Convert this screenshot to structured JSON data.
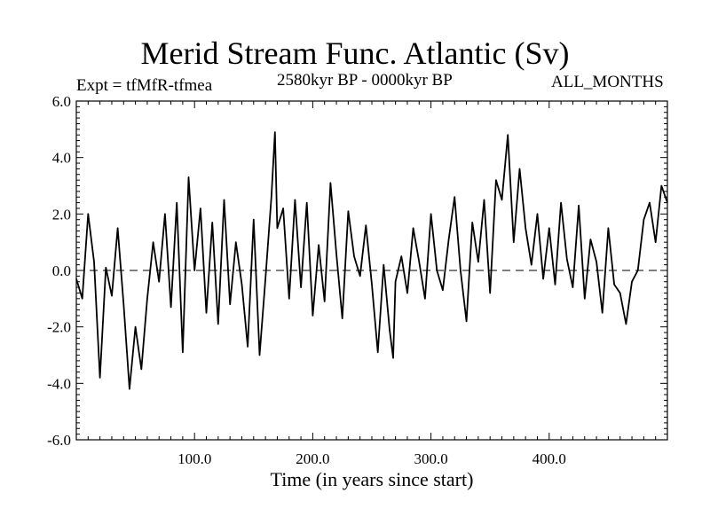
{
  "chart_data": {
    "type": "line",
    "title": "Merid Stream Func. Atlantic (Sv)",
    "subtitle_left": "Expt = tfMfR-tfmea",
    "subtitle_center": "2580kyr BP - 0000kyr BP",
    "subtitle_right": "ALL_MONTHS",
    "xlabel": "Time (in years since start)",
    "ylabel": "",
    "xlim": [
      0,
      500
    ],
    "ylim": [
      -6.0,
      6.0
    ],
    "xticks": [
      100.0,
      200.0,
      300.0,
      400.0
    ],
    "xtick_labels": [
      "100.0",
      "200.0",
      "300.0",
      "400.0"
    ],
    "yticks": [
      -6.0,
      -4.0,
      -2.0,
      0.0,
      2.0,
      4.0,
      6.0
    ],
    "ytick_labels": [
      "-6.0",
      "-4.0",
      "-2.0",
      "0.0",
      "2.0",
      "4.0",
      "6.0"
    ],
    "reference_line": 0.0,
    "series": [
      {
        "name": "Merid Stream Func. Atlantic",
        "x": [
          0,
          5,
          10,
          15,
          20,
          25,
          30,
          35,
          40,
          45,
          50,
          55,
          60,
          65,
          70,
          75,
          80,
          85,
          90,
          95,
          100,
          105,
          110,
          115,
          120,
          125,
          130,
          135,
          140,
          145,
          150,
          155,
          160,
          165,
          168,
          170,
          175,
          180,
          185,
          190,
          195,
          200,
          205,
          210,
          215,
          220,
          225,
          230,
          235,
          240,
          245,
          250,
          255,
          260,
          265,
          268,
          270,
          275,
          280,
          285,
          290,
          295,
          300,
          305,
          310,
          315,
          320,
          325,
          330,
          335,
          340,
          345,
          350,
          355,
          360,
          365,
          370,
          375,
          380,
          385,
          390,
          395,
          400,
          405,
          410,
          415,
          420,
          425,
          430,
          435,
          440,
          445,
          450,
          455,
          460,
          465,
          470,
          475,
          480,
          485,
          490,
          495,
          500
        ],
        "values": [
          -0.3,
          -1.0,
          2.0,
          0.3,
          -3.8,
          0.1,
          -0.9,
          1.5,
          -1.2,
          -4.2,
          -2.0,
          -3.5,
          -1.0,
          1.0,
          -0.4,
          2.0,
          -1.3,
          2.4,
          -2.9,
          3.3,
          0.0,
          2.2,
          -1.5,
          1.7,
          -1.9,
          2.5,
          -1.2,
          1.0,
          -0.5,
          -2.7,
          1.8,
          -3.0,
          -0.3,
          2.6,
          4.9,
          1.5,
          2.2,
          -1.0,
          2.5,
          -0.6,
          2.4,
          -1.6,
          0.9,
          -1.1,
          3.1,
          0.6,
          -1.7,
          2.1,
          0.5,
          -0.2,
          1.6,
          -0.5,
          -2.9,
          0.2,
          -2.1,
          -3.1,
          -0.4,
          0.5,
          -0.8,
          1.5,
          0.3,
          -1.0,
          2.0,
          0.0,
          -0.7,
          1.1,
          2.6,
          0.0,
          -1.8,
          1.7,
          0.3,
          2.5,
          -0.8,
          3.2,
          2.5,
          4.8,
          1.0,
          3.6,
          1.5,
          0.2,
          2.0,
          -0.3,
          1.5,
          -0.5,
          2.4,
          0.4,
          -0.6,
          2.3,
          -1.0,
          1.1,
          0.3,
          -1.5,
          1.5,
          -0.5,
          -0.8,
          -1.9,
          -0.4,
          0.0,
          1.8,
          2.4,
          1.0,
          3.0,
          2.4
        ]
      }
    ]
  }
}
